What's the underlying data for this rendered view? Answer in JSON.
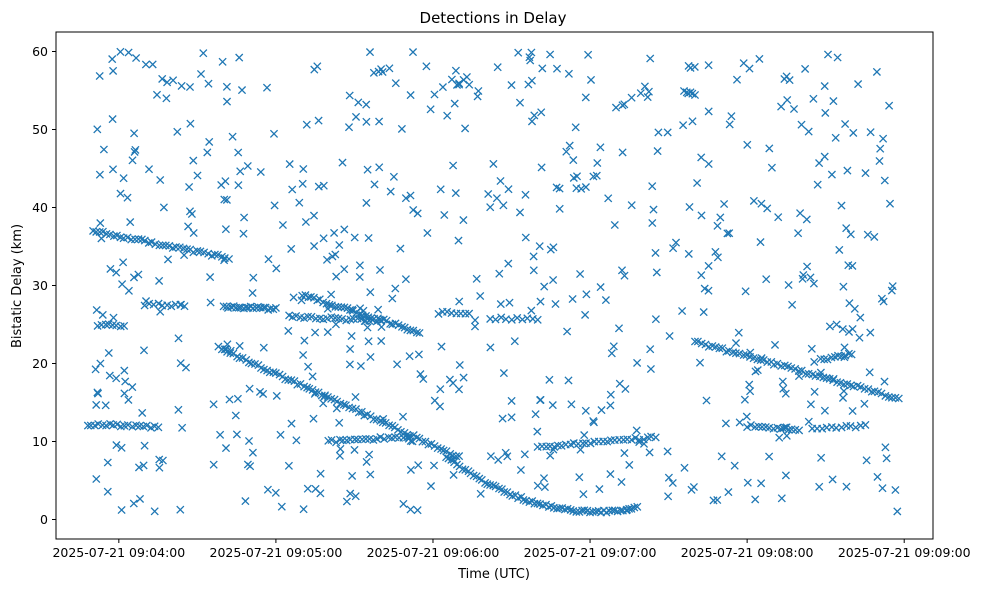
{
  "chart_data": {
    "type": "scatter",
    "title": "Detections in Delay",
    "xlabel": "Time (UTC)",
    "ylabel": "Bistatic Delay (km)",
    "x_axis_type": "time",
    "xlim": [
      "2025-07-21 09:03:36",
      "2025-07-21 09:09:11"
    ],
    "ylim": [
      -2.5,
      62.5
    ],
    "x_ticks": [
      "2025-07-21 09:04:00",
      "2025-07-21 09:05:00",
      "2025-07-21 09:06:00",
      "2025-07-21 09:07:00",
      "2025-07-21 09:08:00",
      "2025-07-21 09:09:00"
    ],
    "y_ticks": [
      0,
      10,
      20,
      30,
      40,
      50,
      60
    ],
    "grid": false,
    "legend": "none",
    "marker": "x",
    "color": "#1f77b4",
    "tracks": [
      {
        "type": "line",
        "start": [
          "09:03:50",
          37.0
        ],
        "end": [
          "09:04:42",
          33.5
        ],
        "count": 40
      },
      {
        "type": "line",
        "start": [
          "09:04:38",
          22.0
        ],
        "end": [
          "09:06:10",
          8.0
        ],
        "count": 80
      },
      {
        "type": "line",
        "start": [
          "09:04:40",
          27.3
        ],
        "end": [
          "09:05:00",
          27.0
        ],
        "count": 22
      },
      {
        "type": "line",
        "start": [
          "09:05:05",
          26.0
        ],
        "end": [
          "09:05:40",
          25.5
        ],
        "count": 25
      },
      {
        "type": "line",
        "start": [
          "09:05:10",
          28.8
        ],
        "end": [
          "09:05:55",
          24.0
        ],
        "count": 40
      },
      {
        "type": "line",
        "start": [
          "09:03:48",
          12.2
        ],
        "end": [
          "09:04:15",
          11.9
        ],
        "count": 20
      },
      {
        "type": "line",
        "start": [
          "09:03:52",
          25.0
        ],
        "end": [
          "09:04:02",
          24.8
        ],
        "count": 8
      },
      {
        "type": "line",
        "start": [
          "09:04:10",
          27.6
        ],
        "end": [
          "09:04:25",
          27.4
        ],
        "count": 10
      },
      {
        "type": "line",
        "start": [
          "09:05:20",
          10.0
        ],
        "end": [
          "09:05:50",
          10.6
        ],
        "count": 22
      },
      {
        "type": "line",
        "start": [
          "09:06:02",
          26.5
        ],
        "end": [
          "09:06:14",
          26.4
        ],
        "count": 8
      },
      {
        "type": "line",
        "start": [
          "09:06:22",
          25.8
        ],
        "end": [
          "09:06:40",
          25.6
        ],
        "count": 10
      },
      {
        "type": "line",
        "start": [
          "09:06:40",
          9.3
        ],
        "end": [
          "09:07:25",
          10.5
        ],
        "count": 30
      },
      {
        "type": "line",
        "start": [
          "09:07:40",
          22.8
        ],
        "end": [
          "09:08:58",
          15.5
        ],
        "count": 60
      },
      {
        "type": "line",
        "start": [
          "09:08:00",
          12.0
        ],
        "end": [
          "09:08:20",
          11.5
        ],
        "count": 15
      },
      {
        "type": "line",
        "start": [
          "09:08:25",
          11.7
        ],
        "end": [
          "09:08:45",
          12.0
        ],
        "count": 12
      },
      {
        "type": "line",
        "start": [
          "09:08:28",
          20.5
        ],
        "end": [
          "09:08:40",
          21.2
        ],
        "count": 10
      },
      {
        "type": "line",
        "start": [
          "09:07:36",
          55.0
        ],
        "end": [
          "09:07:40",
          54.5
        ],
        "count": 6
      },
      {
        "type": "parabola",
        "start": "09:06:05",
        "end": "09:07:18",
        "vertex": [
          "09:07:02",
          1.0
        ],
        "y_at_start": 8.0,
        "count": 70
      }
    ],
    "noise": {
      "count": 650,
      "x_range": [
        "09:03:50",
        "09:08:58"
      ],
      "y_range": [
        1.0,
        60.0
      ]
    }
  }
}
